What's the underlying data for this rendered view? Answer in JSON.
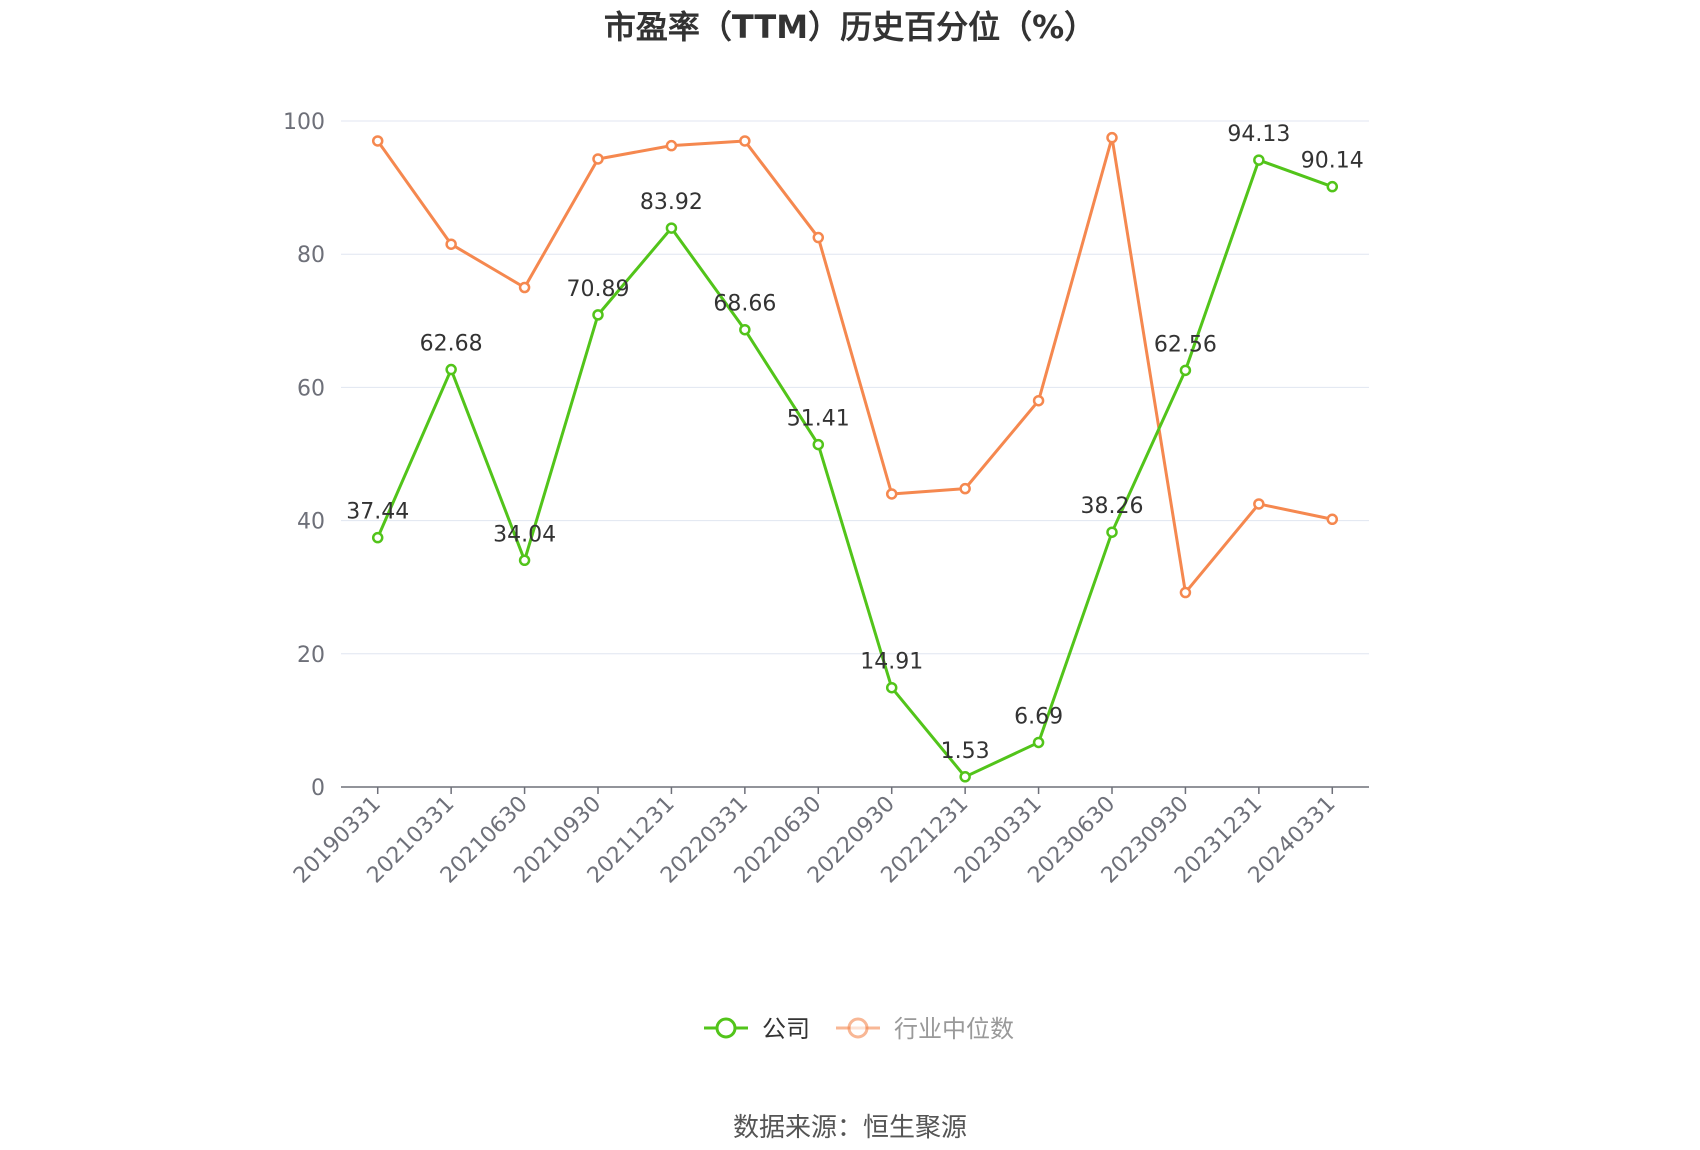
{
  "chart_data": {
    "type": "line",
    "title": "市盈率（TTM）历史百分位（%）",
    "categories": [
      "20190331",
      "20210331",
      "20210630",
      "20210930",
      "20211231",
      "20220331",
      "20220630",
      "20220930",
      "20221231",
      "20230331",
      "20230630",
      "20230930",
      "20231231",
      "20240331"
    ],
    "series": [
      {
        "name": "公司",
        "color": "#52c41a",
        "values": [
          37.44,
          62.68,
          34.04,
          70.89,
          83.92,
          68.66,
          51.41,
          14.91,
          1.53,
          6.69,
          38.26,
          62.56,
          94.13,
          90.14
        ],
        "data_labels": [
          "37.44",
          "62.68",
          "34.04",
          "70.89",
          "83.92",
          "68.66",
          "51.41",
          "14.91",
          "1.53",
          "6.69",
          "38.26",
          "62.56",
          "94.13",
          "90.14"
        ]
      },
      {
        "name": "行业中位数",
        "color": "#f5884f",
        "values": [
          97,
          81.5,
          75,
          94.3,
          96.3,
          97,
          82.5,
          44,
          44.8,
          58,
          97.5,
          29.2,
          42.5,
          40.2
        ]
      }
    ],
    "ylim": [
      0,
      100
    ],
    "yticks": [
      "0",
      "20",
      "40",
      "60",
      "80",
      "100"
    ],
    "xlabel": "",
    "ylabel": "",
    "grid": true,
    "legend_position": "bottom-center"
  },
  "source": "数据来源：恒生聚源",
  "colors": {
    "grid": "#e0e6f1",
    "axis": "#6e7079",
    "legend_inactive_text": "#999999",
    "legend_active_text": "#333333"
  }
}
